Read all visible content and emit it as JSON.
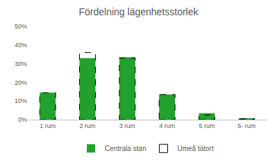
{
  "chart_data": {
    "type": "bar",
    "title": "Fördelning lägenhetsstorlek",
    "categories": [
      "1 rum",
      "2 rum",
      "3 rum",
      "4 rum",
      "5 rum",
      "6- rum"
    ],
    "series": [
      {
        "name": "Centrala stan",
        "color": "#22a12d",
        "values": [
          14.5,
          33,
          33.5,
          13.5,
          3.5,
          0.8
        ]
      },
      {
        "name": "Umeå tätort",
        "color": "#000000",
        "line_style": "dashed",
        "values": [
          14.5,
          36,
          33,
          13.5,
          2.5,
          0.5
        ]
      }
    ],
    "ylim": [
      0,
      50
    ],
    "yticks": [
      {
        "value": 0,
        "label": "0%"
      },
      {
        "value": 10,
        "label": "10%"
      },
      {
        "value": 20,
        "label": "20%"
      },
      {
        "value": 30,
        "label": "30%"
      },
      {
        "value": 40,
        "label": "40%"
      },
      {
        "value": 50,
        "label": "50%"
      }
    ],
    "grid": false,
    "legend": "bottom"
  }
}
